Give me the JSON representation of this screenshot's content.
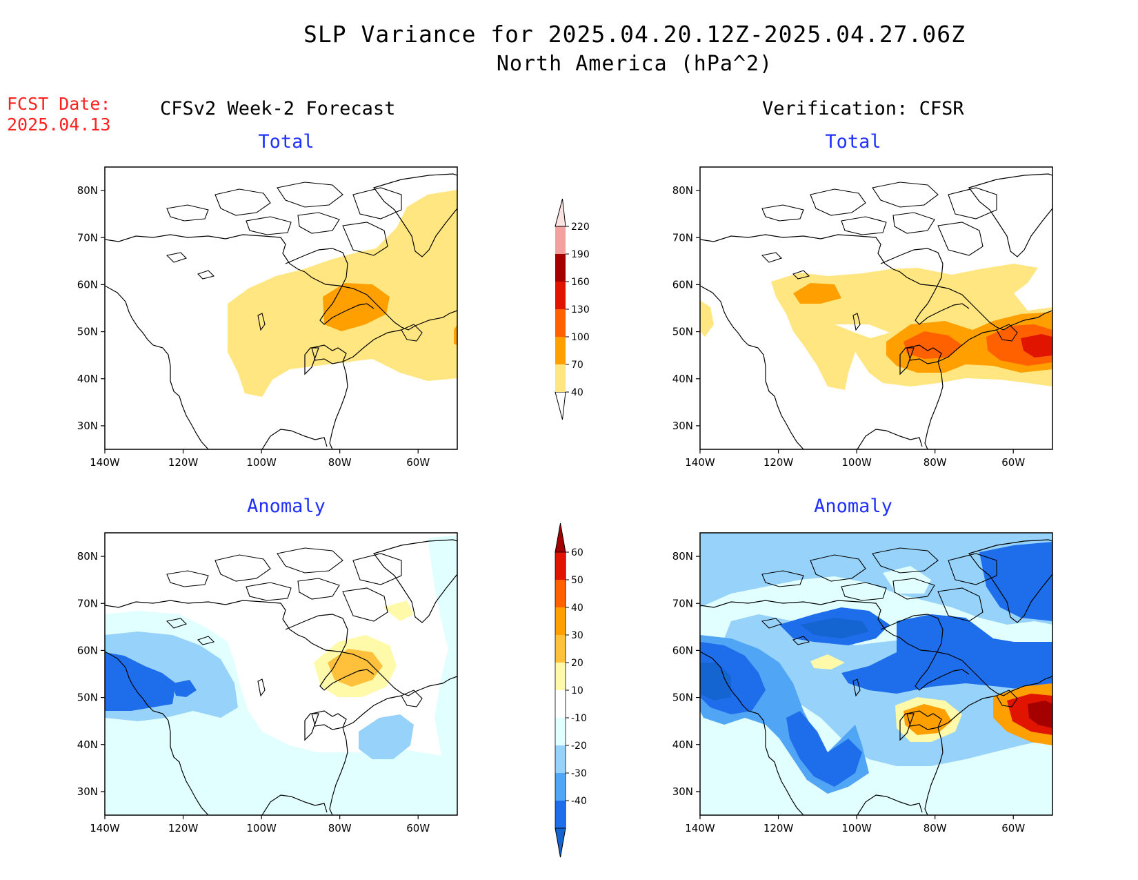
{
  "header": {
    "title_line1": "SLP Variance for 2025.04.20.12Z-2025.04.27.06Z",
    "title_line2": "North America (hPa^2)",
    "fcst_label": "FCST Date:",
    "fcst_date": "2025.04.13",
    "left_column": "CFSv2 Week-2 Forecast",
    "right_column": "Verification: CFSR"
  },
  "panels": {
    "fc_total": {
      "title": "Total"
    },
    "fc_anom": {
      "title": "Anomaly"
    },
    "ver_total": {
      "title": "Total"
    },
    "ver_anom": {
      "title": "Anomaly"
    }
  },
  "axes": {
    "lon_ticks": [
      "140W",
      "120W",
      "100W",
      "80W",
      "60W"
    ],
    "lat_ticks": [
      "30N",
      "40N",
      "50N",
      "60N",
      "70N",
      "80N"
    ],
    "lon_range": [
      -140,
      -50
    ],
    "lat_range": [
      25,
      85
    ]
  },
  "colorbars": {
    "total": {
      "levels": [
        "40",
        "70",
        "100",
        "130",
        "160",
        "190",
        "220"
      ],
      "colors": [
        "#ffe680",
        "#ffa000",
        "#ff6000",
        "#e11400",
        "#a50000",
        "#f4a0a0",
        "#fde2e2"
      ]
    },
    "anomaly": {
      "levels": [
        "-40",
        "-30",
        "-20",
        "-10",
        "10",
        "20",
        "30",
        "40",
        "50",
        "60"
      ],
      "colors": [
        "#1464d2",
        "#1e6eeb",
        "#50a5f5",
        "#96d2fa",
        "#e1ffff",
        "#ffffff",
        "#fffaaa",
        "#ffc03c",
        "#ffa000",
        "#ff6000",
        "#e11400",
        "#a50000"
      ]
    }
  },
  "colors": {
    "title_red": "#ff2020",
    "panel_title_blue": "#2030ff"
  }
}
